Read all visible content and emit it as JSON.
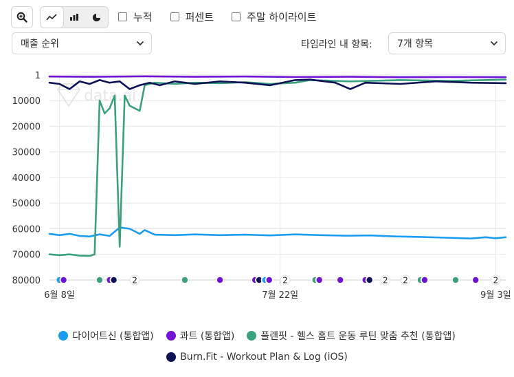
{
  "toolbar": {
    "zoom_icon": "zoom-in-icon",
    "chart_types": [
      "line-chart-icon",
      "bar-chart-icon",
      "pie-chart-icon"
    ],
    "checkboxes": [
      {
        "label": "누적",
        "checked": false
      },
      {
        "label": "퍼센트",
        "checked": false
      },
      {
        "label": "주말 하이라이트",
        "checked": false
      }
    ],
    "metric_select": "매출 순위",
    "count_label": "타임라인 내 항목:",
    "count_select": "7개 항목"
  },
  "watermark": "data.ai",
  "colors": {
    "grid": "#e6e6e6",
    "axis": "#444444"
  },
  "chart_data": {
    "type": "line",
    "title": "",
    "xlabel": "",
    "ylabel": "",
    "y_reversed": true,
    "ylim": [
      1,
      80000
    ],
    "yticks": [
      "1",
      "10000",
      "20000",
      "30000",
      "40000",
      "50000",
      "60000",
      "70000",
      "80000"
    ],
    "ytick_values": [
      1,
      10000,
      20000,
      30000,
      40000,
      50000,
      60000,
      70000,
      80000
    ],
    "x_start": "2023-06-06",
    "x_end": "2023-09-05",
    "xticks": [
      {
        "label": "6월 8일",
        "date": "2023-06-08"
      },
      {
        "label": "7월 22일",
        "date": "2023-07-22"
      },
      {
        "label": "9월 3일",
        "date": "2023-09-03"
      }
    ],
    "series": [
      {
        "name": "다이어트신 (통합앱)",
        "color": "#1a9cf0",
        "points": [
          [
            "2023-06-06",
            62000
          ],
          [
            "2023-06-08",
            62500
          ],
          [
            "2023-06-10",
            62000
          ],
          [
            "2023-06-12",
            62800
          ],
          [
            "2023-06-14",
            63000
          ],
          [
            "2023-06-16",
            62200
          ],
          [
            "2023-06-18",
            62800
          ],
          [
            "2023-06-20",
            59500
          ],
          [
            "2023-06-22",
            60000
          ],
          [
            "2023-06-24",
            62000
          ],
          [
            "2023-06-25",
            60500
          ],
          [
            "2023-06-27",
            62300
          ],
          [
            "2023-07-01",
            62500
          ],
          [
            "2023-07-05",
            62200
          ],
          [
            "2023-07-10",
            62500
          ],
          [
            "2023-07-15",
            62300
          ],
          [
            "2023-07-20",
            62600
          ],
          [
            "2023-07-25",
            62200
          ],
          [
            "2023-07-30",
            62500
          ],
          [
            "2023-08-04",
            62700
          ],
          [
            "2023-08-09",
            62600
          ],
          [
            "2023-08-14",
            63000
          ],
          [
            "2023-08-19",
            63200
          ],
          [
            "2023-08-24",
            63500
          ],
          [
            "2023-08-29",
            63800
          ],
          [
            "2023-09-01",
            63300
          ],
          [
            "2023-09-03",
            63700
          ],
          [
            "2023-09-05",
            63300
          ]
        ]
      },
      {
        "name": "콰트 (통합앱)",
        "color": "#6f12d6",
        "points": [
          [
            "2023-06-06",
            600
          ],
          [
            "2023-06-15",
            700
          ],
          [
            "2023-06-25",
            500
          ],
          [
            "2023-07-05",
            700
          ],
          [
            "2023-07-15",
            600
          ],
          [
            "2023-07-25",
            800
          ],
          [
            "2023-08-05",
            700
          ],
          [
            "2023-08-15",
            900
          ],
          [
            "2023-08-25",
            800
          ],
          [
            "2023-09-05",
            900
          ]
        ]
      },
      {
        "name": "플랜핏 - 헬스 홈트 운동 루틴 맞춤 추천 (통합앱)",
        "color": "#3aa17e",
        "points": [
          [
            "2023-06-06",
            70000
          ],
          [
            "2023-06-08",
            70300
          ],
          [
            "2023-06-10",
            70000
          ],
          [
            "2023-06-12",
            70500
          ],
          [
            "2023-06-14",
            70600
          ],
          [
            "2023-06-15",
            70000
          ],
          [
            "2023-06-16",
            10000
          ],
          [
            "2023-06-17",
            15000
          ],
          [
            "2023-06-18",
            13000
          ],
          [
            "2023-06-19",
            8000
          ],
          [
            "2023-06-20",
            67000
          ],
          [
            "2023-06-21",
            8000
          ],
          [
            "2023-06-22",
            12000
          ],
          [
            "2023-06-24",
            14000
          ],
          [
            "2023-06-25",
            4000
          ],
          [
            "2023-06-27",
            3000
          ],
          [
            "2023-07-01",
            3500
          ],
          [
            "2023-07-05",
            3000
          ],
          [
            "2023-07-10",
            3200
          ],
          [
            "2023-07-15",
            2800
          ],
          [
            "2023-07-20",
            3500
          ],
          [
            "2023-07-25",
            3000
          ],
          [
            "2023-07-28",
            2000
          ],
          [
            "2023-08-05",
            2500
          ],
          [
            "2023-08-15",
            2000
          ],
          [
            "2023-08-25",
            2300
          ],
          [
            "2023-09-05",
            1800
          ]
        ]
      },
      {
        "name": "Burn.Fit - Workout Plan & Log (iOS)",
        "color": "#0d1254",
        "points": [
          [
            "2023-06-06",
            3000
          ],
          [
            "2023-06-08",
            3500
          ],
          [
            "2023-06-10",
            5500
          ],
          [
            "2023-06-12",
            2500
          ],
          [
            "2023-06-14",
            3500
          ],
          [
            "2023-06-16",
            2000
          ],
          [
            "2023-06-18",
            3000
          ],
          [
            "2023-06-20",
            2500
          ],
          [
            "2023-06-22",
            5500
          ],
          [
            "2023-06-24",
            4000
          ],
          [
            "2023-06-26",
            3000
          ],
          [
            "2023-06-28",
            4000
          ],
          [
            "2023-07-01",
            2500
          ],
          [
            "2023-07-05",
            3500
          ],
          [
            "2023-07-10",
            2500
          ],
          [
            "2023-07-15",
            3000
          ],
          [
            "2023-07-20",
            4000
          ],
          [
            "2023-07-25",
            2000
          ],
          [
            "2023-07-28",
            1800
          ],
          [
            "2023-08-02",
            3000
          ],
          [
            "2023-08-05",
            5500
          ],
          [
            "2023-08-08",
            3000
          ],
          [
            "2023-08-15",
            3500
          ],
          [
            "2023-08-22",
            2500
          ],
          [
            "2023-08-29",
            3000
          ],
          [
            "2023-09-05",
            3200
          ]
        ]
      }
    ],
    "events": [
      {
        "date": "2023-06-08",
        "colors": [
          "#1a9cf0",
          "#6f12d6"
        ]
      },
      {
        "date": "2023-06-16",
        "colors": [
          "#3aa17e"
        ]
      },
      {
        "date": "2023-06-18",
        "colors": [
          "#6f12d6",
          "#0d1254"
        ]
      },
      {
        "date": "2023-06-23",
        "label": "2"
      },
      {
        "date": "2023-07-03",
        "colors": [
          "#3aa17e"
        ]
      },
      {
        "date": "2023-07-10",
        "colors": [
          "#6f12d6"
        ]
      },
      {
        "date": "2023-07-17",
        "colors": [
          "#6f12d6",
          "#0d1254"
        ]
      },
      {
        "date": "2023-07-19",
        "colors": [
          "#1a9cf0",
          "#6f12d6"
        ]
      },
      {
        "date": "2023-07-23",
        "label": "2"
      },
      {
        "date": "2023-07-29",
        "colors": [
          "#3aa17e",
          "#6f12d6"
        ]
      },
      {
        "date": "2023-08-03",
        "colors": [
          "#6f12d6"
        ]
      },
      {
        "date": "2023-08-08",
        "colors": [
          "#6f12d6",
          "#0d1254"
        ]
      },
      {
        "date": "2023-08-12",
        "label": "2"
      },
      {
        "date": "2023-08-16",
        "label": "2"
      },
      {
        "date": "2023-08-19",
        "colors": [
          "#3aa17e",
          "#6f12d6"
        ]
      },
      {
        "date": "2023-08-26",
        "colors": [
          "#3aa17e"
        ]
      },
      {
        "date": "2023-08-30",
        "colors": [
          "#6f12d6"
        ]
      },
      {
        "date": "2023-09-03",
        "label": "2"
      }
    ]
  }
}
